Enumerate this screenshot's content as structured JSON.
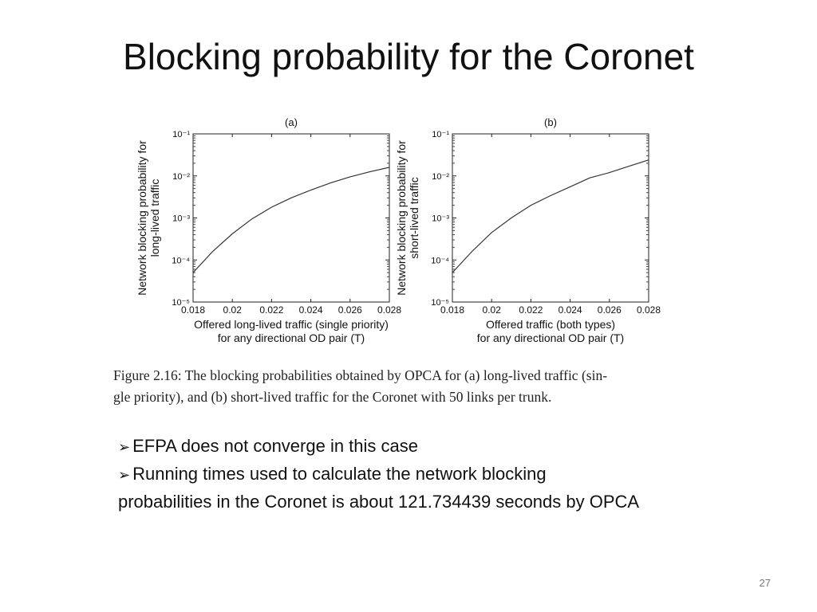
{
  "slide": {
    "title": "Blocking probability for the Coronet",
    "page_number": "27"
  },
  "chart_data": [
    {
      "type": "line",
      "title": "(a)",
      "ylabel": [
        "Network blocking probability for",
        "long-lived traffic"
      ],
      "xlabel": [
        "Offered long-lived traffic (single priority)",
        "for any directional OD pair (T)"
      ],
      "x_ticks": [
        "0.018",
        "0.02",
        "0.022",
        "0.024",
        "0.026",
        "0.028"
      ],
      "y_ticks": [
        "10⁻¹",
        "10⁻²",
        "10⁻³",
        "10⁻⁴",
        "10⁻⁵"
      ],
      "xlim": [
        0.018,
        0.028
      ],
      "ylim": [
        1e-05,
        0.1
      ],
      "yscale": "log",
      "grid": false,
      "series": [
        {
          "x": [
            0.018,
            0.019,
            0.02,
            0.021,
            0.022,
            0.023,
            0.024,
            0.025,
            0.026,
            0.027,
            0.028
          ],
          "y": [
            5e-05,
            0.00016,
            0.00042,
            0.00095,
            0.0018,
            0.003,
            0.0046,
            0.0068,
            0.0095,
            0.0125,
            0.016
          ]
        }
      ]
    },
    {
      "type": "line",
      "title": "(b)",
      "ylabel": [
        "Network blocking probability for",
        "short-lived traffic"
      ],
      "xlabel": [
        "Offered traffic (both types)",
        "for any directional OD pair (T)"
      ],
      "x_ticks": [
        "0.018",
        "0.02",
        "0.022",
        "0.024",
        "0.026",
        "0.028"
      ],
      "y_ticks": [
        "10⁻¹",
        "10⁻²",
        "10⁻³",
        "10⁻⁴",
        "10⁻⁵"
      ],
      "xlim": [
        0.018,
        0.028
      ],
      "ylim": [
        1e-05,
        0.1
      ],
      "yscale": "log",
      "grid": false,
      "series": [
        {
          "x": [
            0.018,
            0.019,
            0.02,
            0.021,
            0.022,
            0.023,
            0.024,
            0.025,
            0.026,
            0.027,
            0.028
          ],
          "y": [
            5e-05,
            0.00016,
            0.00045,
            0.001,
            0.002,
            0.0034,
            0.0055,
            0.009,
            0.012,
            0.017,
            0.024
          ]
        }
      ]
    }
  ],
  "caption": {
    "line1": "Figure 2.16: The blocking probabilities obtained by OPCA for (a) long-lived traffic (sin-",
    "line2": "gle priority), and (b) short-lived traffic for the Coronet with 50 links per trunk."
  },
  "bullets": {
    "marker": "➢",
    "b1": "EFPA  does not converge in this case",
    "b2_line1": "Running times used to calculate the network blocking",
    "b2_line2": "probabilities in the Coronet is about 121.734439 seconds by OPCA"
  }
}
